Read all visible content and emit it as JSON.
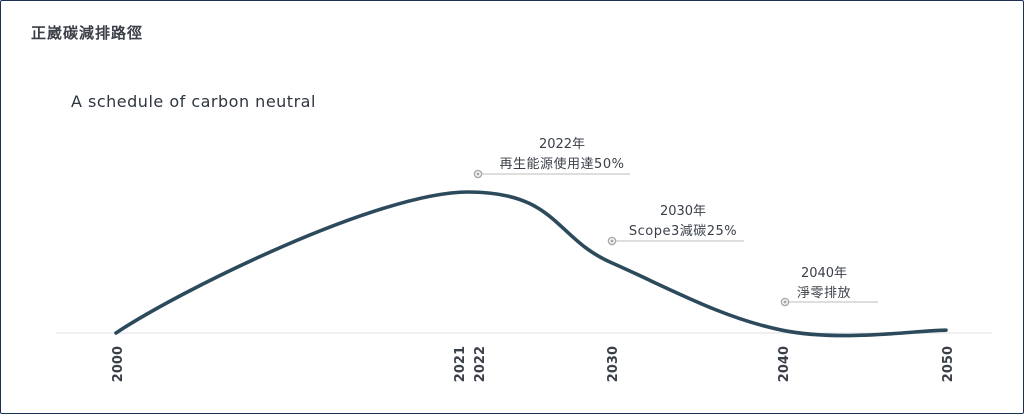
{
  "panel": {
    "title": "正崴碳減排路徑"
  },
  "chart_data": {
    "type": "line",
    "title": "A schedule of carbon neutral",
    "x_ticks": [
      "2000",
      "2021",
      "2022",
      "2030",
      "2040",
      "2050"
    ],
    "points": [
      {
        "x": 2000,
        "y": 0
      },
      {
        "x": 2021.5,
        "y": 100
      },
      {
        "x": 2030,
        "y": 50
      },
      {
        "x": 2040,
        "y": 2
      },
      {
        "x": 2050,
        "y": 2
      }
    ],
    "annotations": [
      {
        "x": 2022,
        "year": "2022年",
        "text": "再生能源使用達50%"
      },
      {
        "x": 2030,
        "year": "2030年",
        "text": "Scope3減碳25%"
      },
      {
        "x": 2040,
        "year": "2040年",
        "text": "淨零排放"
      }
    ],
    "colors": {
      "line": "#2c4a5c",
      "baseline": "#e4e6ea",
      "marker": "#a7a7a7",
      "text": "#3a3f48"
    }
  }
}
